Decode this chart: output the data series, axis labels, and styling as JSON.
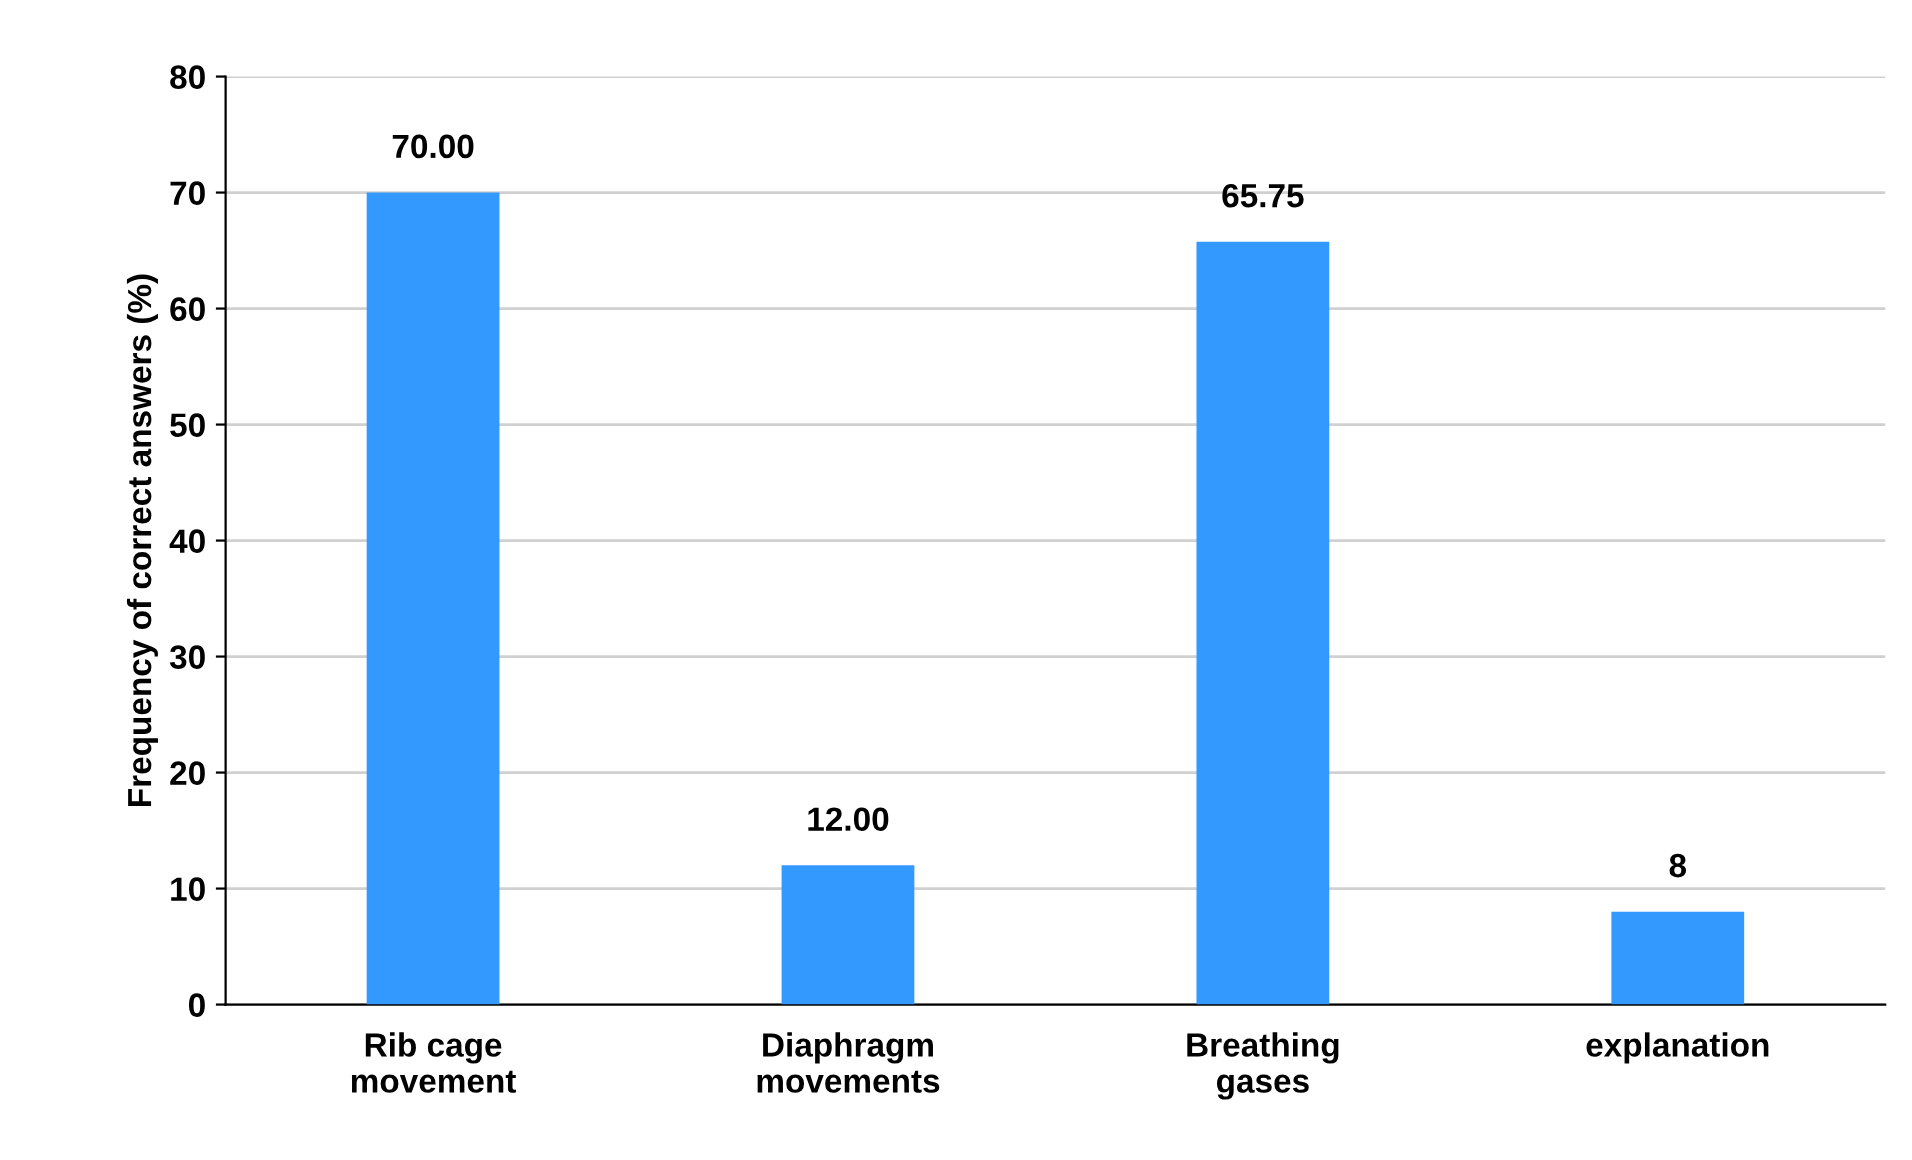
{
  "chart_data": {
    "type": "bar",
    "ylabel": "Frequency of correct answers (%)",
    "categories": [
      "Rib cage\nmovement",
      "Diaphragm\nmovements",
      "Breathing\ngases",
      "explanation"
    ],
    "values": [
      70,
      12,
      65.75,
      8
    ],
    "color": "#3399ff",
    "value_labels": [
      "70.00",
      "12.00",
      "65.75",
      "8"
    ],
    "ylim": [
      0,
      80
    ],
    "yticks": [
      0,
      10,
      20,
      30,
      40,
      50,
      60,
      70,
      80
    ],
    "grid": "y"
  }
}
